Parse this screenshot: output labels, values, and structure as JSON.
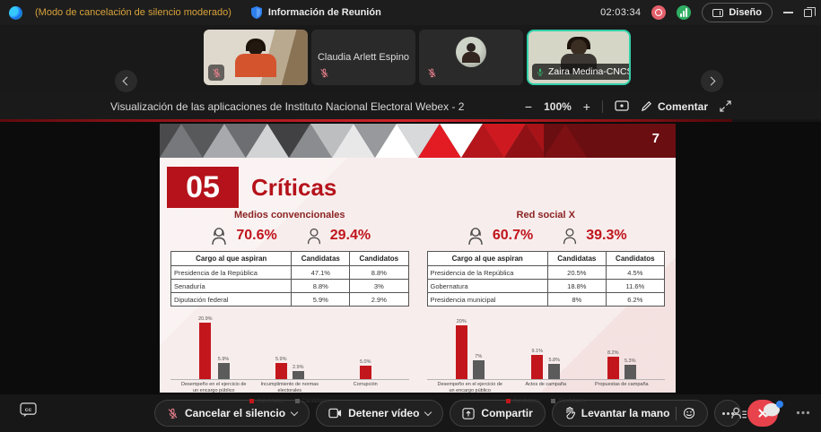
{
  "titlebar": {
    "mode_text": "(Modo de cancelación de silencio moderado)",
    "meeting_info": "Información de Reunión",
    "time": "02:03:34",
    "layout_button": "Diseño"
  },
  "filmstrip": {
    "participants": [
      {
        "name": "",
        "muted": true
      },
      {
        "name": "Claudia Arlett Espino",
        "muted": true
      },
      {
        "name": "",
        "muted": true
      },
      {
        "name": "Zaira Medina-CNCS",
        "muted": false,
        "active_speaker": true
      }
    ]
  },
  "share_toolbar": {
    "title": "Visualización de las aplicaciones de Instituto Nacional Electoral Webex - 2",
    "zoom_level": "100%",
    "comment_label": "Comentar"
  },
  "slide": {
    "page_number": "7",
    "section_number": "05",
    "title": "Críticas",
    "panels": [
      {
        "heading": "Medios convencionales",
        "female_pct": "70.6%",
        "male_pct": "29.4%",
        "table": {
          "headers": [
            "Cargo al que aspiran",
            "Candidatas",
            "Candidatos"
          ],
          "rows": [
            [
              "Presidencia de la República",
              "47.1%",
              "8.8%"
            ],
            [
              "Senaduría",
              "8.8%",
              "3%"
            ],
            [
              "Diputación federal",
              "5.9%",
              "2.9%"
            ]
          ]
        }
      },
      {
        "heading": "Red social X",
        "female_pct": "60.7%",
        "male_pct": "39.3%",
        "table": {
          "headers": [
            "Cargo al que aspiran",
            "Candidatas",
            "Candidatos"
          ],
          "rows": [
            [
              "Presidencia de la República",
              "20.5%",
              "4.5%"
            ],
            [
              "Gobernatura",
              "18.8%",
              "11.6%"
            ],
            [
              "Presidencia municipal",
              "8%",
              "6.2%"
            ]
          ]
        }
      }
    ]
  },
  "chart_data": [
    {
      "type": "bar",
      "title": "Medios convencionales",
      "categories": [
        "Desempeño en el ejercicio de un encargo público",
        "Incumplimiento de normas electorales",
        "Corrupción"
      ],
      "series": [
        {
          "name": "Candidatas",
          "color": "#c3161c",
          "values": [
            20.9,
            5.9,
            5.0
          ],
          "labels": [
            "20.9%",
            "5.9%",
            "5.0%"
          ]
        },
        {
          "name": "Candidatos",
          "color": "#5b5b5b",
          "values": [
            5.9,
            2.9,
            null
          ],
          "labels": [
            "5.9%",
            "2.9%",
            null
          ]
        }
      ],
      "ylim": [
        0,
        25
      ],
      "grid": false,
      "legend_position": "bottom"
    },
    {
      "type": "bar",
      "title": "Red social X",
      "categories": [
        "Desempeño en el ejercicio de un encargo público",
        "Actos de campaña",
        "Propuestas de campaña"
      ],
      "series": [
        {
          "name": "Candidatas",
          "color": "#c3161c",
          "values": [
            20,
            9.1,
            8.2
          ],
          "labels": [
            "20%",
            "9.1%",
            "8.2%"
          ]
        },
        {
          "name": "Candidatos",
          "color": "#5b5b5b",
          "values": [
            7,
            5.8,
            5.3
          ],
          "labels": [
            "7%",
            "5.8%",
            "5.3%"
          ]
        }
      ],
      "ylim": [
        0,
        25
      ],
      "grid": false,
      "legend_position": "bottom"
    }
  ],
  "bottom_toolbar": {
    "mute_button": "Cancelar el silencio",
    "video_button": "Detener vídeo",
    "share_button": "Compartir",
    "raise_hand_button": "Levantar la mano"
  },
  "colors": {
    "accent_red": "#c3161c",
    "slide_dark_red": "#6b0e11",
    "active_speaker_border": "#31d0aa",
    "warning_text": "#d7a23b",
    "end_call": "#e8434d",
    "bar_female": "#c3161c",
    "bar_male": "#5b5b5b"
  }
}
